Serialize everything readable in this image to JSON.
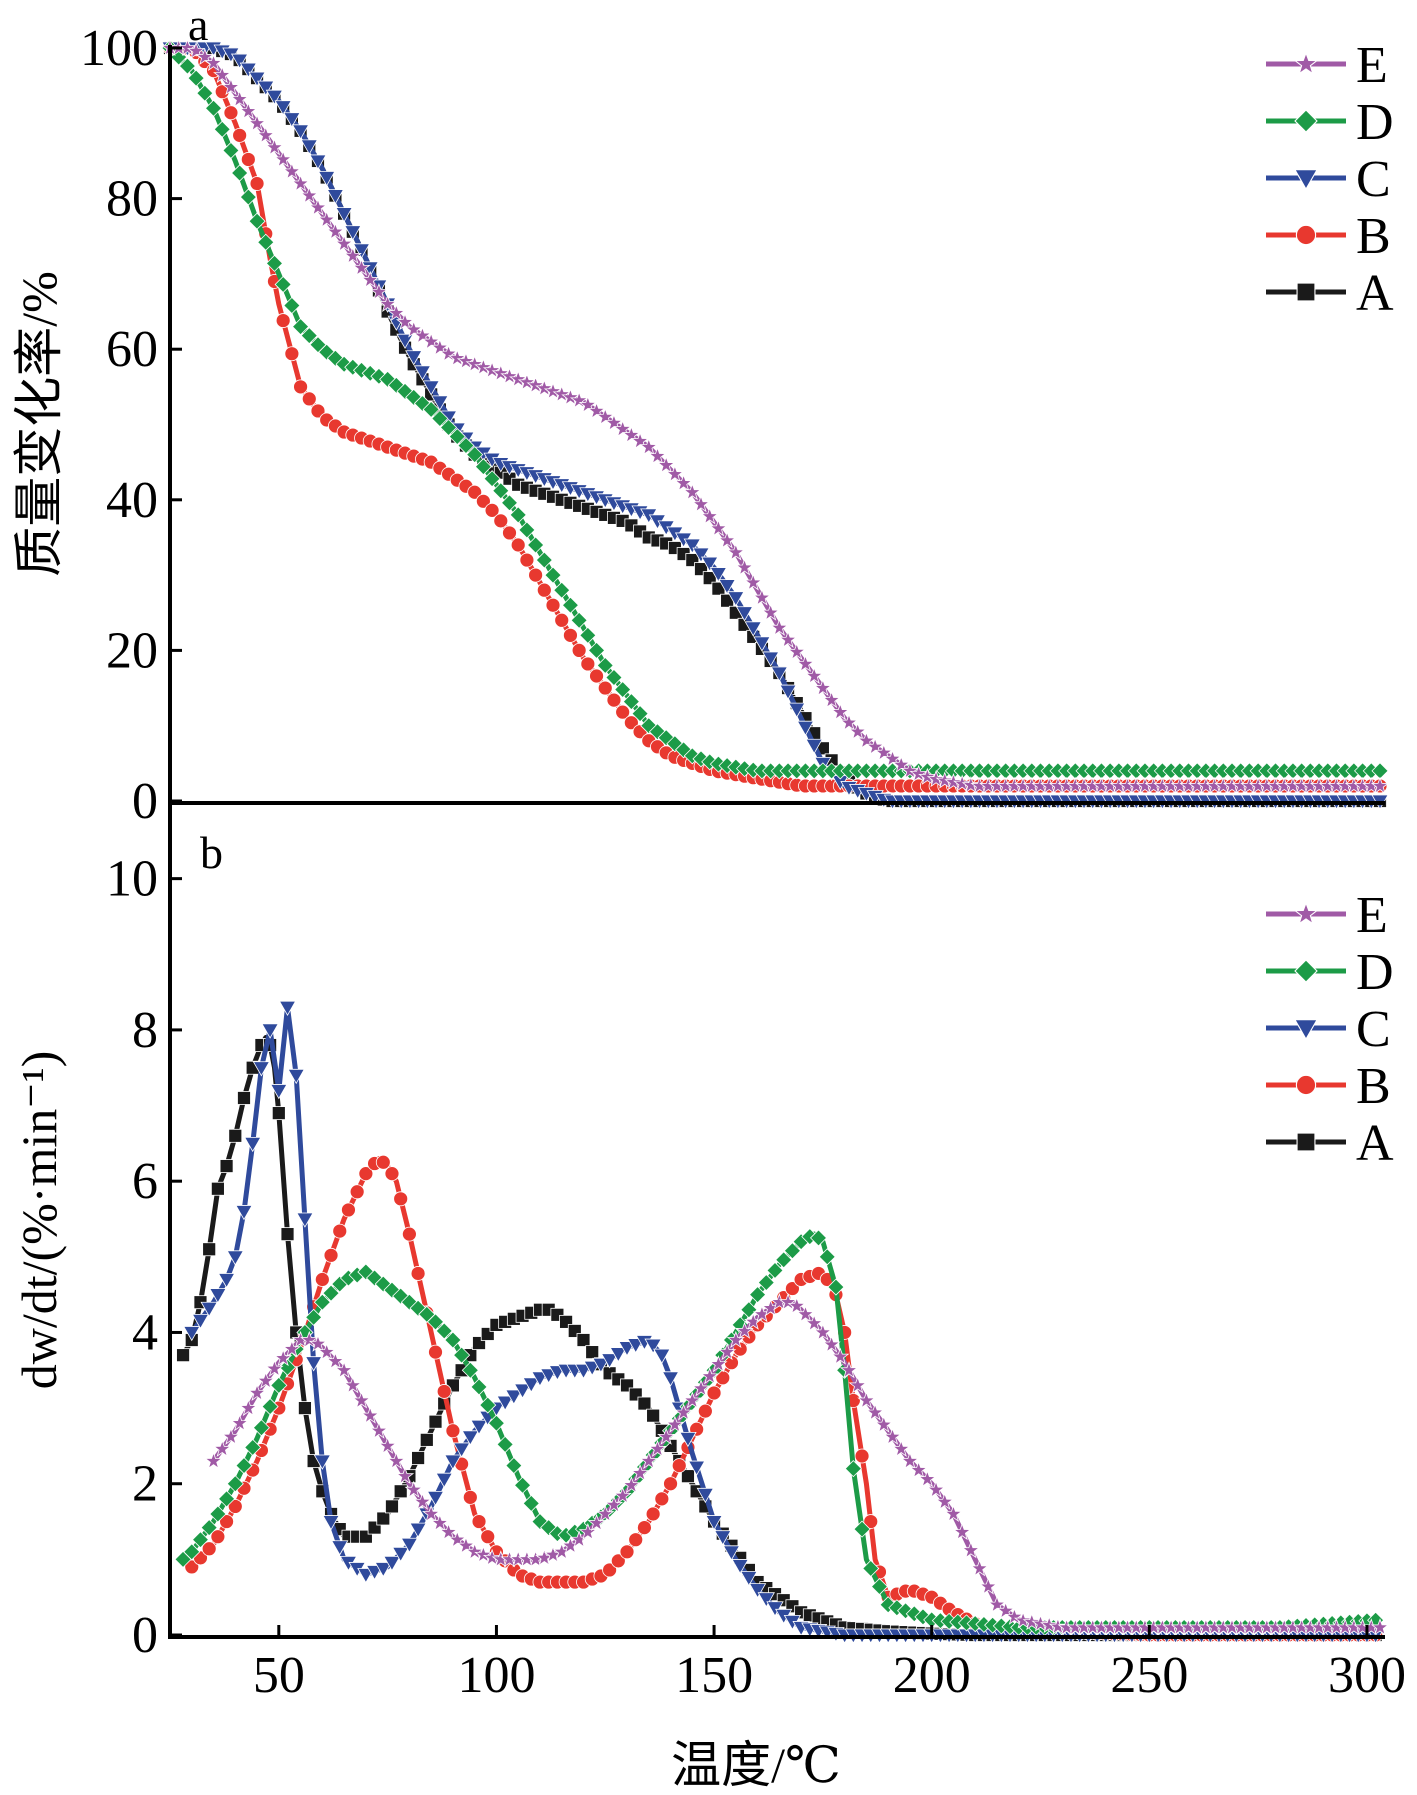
{
  "x_axis": {
    "label": "温度/℃",
    "ticks": [
      "50",
      "100",
      "150",
      "200",
      "250",
      "300"
    ],
    "range": [
      25,
      303
    ]
  },
  "panels": [
    {
      "letter": "a",
      "ylabel": "质量变化率/%",
      "yticks": [
        "100",
        "80",
        "60",
        "40",
        "20",
        "0"
      ]
    },
    {
      "letter": "b",
      "ylabel": "dw/dt/(%·min⁻¹)",
      "yticks": [
        "10",
        "8",
        "6",
        "4",
        "2",
        "0"
      ]
    }
  ],
  "legend": [
    {
      "label": "E",
      "color": "#a05aa6",
      "marker": "star"
    },
    {
      "label": "D",
      "color": "#1c9b47",
      "marker": "diamond"
    },
    {
      "label": "C",
      "color": "#2f4a9c",
      "marker": "triangle-down"
    },
    {
      "label": "B",
      "color": "#e8382f",
      "marker": "circle"
    },
    {
      "label": "A",
      "color": "#1a1a1a",
      "marker": "square"
    }
  ],
  "chart_data": [
    {
      "type": "line",
      "title": "",
      "xlabel": "温度/℃",
      "ylabel": "质量变化率/%",
      "xlim": [
        25,
        303
      ],
      "ylim": [
        0,
        100
      ],
      "grid": false,
      "legend_position": "top-right",
      "series": [
        {
          "name": "A",
          "x": [
            25,
            30,
            35,
            40,
            45,
            50,
            55,
            60,
            65,
            70,
            75,
            80,
            85,
            90,
            95,
            100,
            105,
            110,
            115,
            120,
            125,
            130,
            135,
            140,
            145,
            150,
            155,
            160,
            165,
            170,
            175,
            180,
            185,
            190,
            200,
            220,
            250,
            280,
            303
          ],
          "y": [
            100,
            100,
            100,
            99,
            96,
            93,
            89,
            84,
            78,
            72,
            65,
            59,
            54,
            49,
            46,
            44,
            42,
            41,
            40,
            39,
            38,
            37,
            35,
            34,
            32,
            29,
            25,
            21,
            17,
            12,
            7,
            3,
            1,
            0,
            0,
            0,
            0,
            0,
            0
          ]
        },
        {
          "name": "B",
          "x": [
            25,
            30,
            35,
            40,
            45,
            48,
            50,
            55,
            60,
            65,
            70,
            75,
            80,
            85,
            90,
            95,
            100,
            105,
            110,
            115,
            120,
            125,
            130,
            135,
            140,
            145,
            150,
            160,
            170,
            180,
            200,
            250,
            303
          ],
          "y": [
            100,
            100,
            97,
            90,
            82,
            72,
            66,
            55,
            51,
            49,
            48,
            47,
            46,
            45,
            43,
            41,
            38,
            34,
            29,
            24,
            19,
            15,
            11,
            8,
            6,
            5,
            4,
            3,
            2,
            2,
            2,
            2,
            2
          ]
        },
        {
          "name": "C",
          "x": [
            25,
            30,
            35,
            40,
            45,
            50,
            55,
            60,
            65,
            70,
            75,
            80,
            85,
            90,
            95,
            100,
            105,
            110,
            115,
            120,
            125,
            130,
            135,
            140,
            145,
            150,
            155,
            160,
            165,
            170,
            175,
            180,
            185,
            190,
            200,
            250,
            303
          ],
          "y": [
            100,
            100,
            100,
            99,
            96,
            93,
            89,
            84,
            78,
            72,
            66,
            60,
            55,
            50,
            47,
            45,
            44,
            43,
            42,
            41,
            40,
            39,
            38,
            36,
            34,
            31,
            27,
            22,
            17,
            11,
            5,
            2,
            1,
            0,
            0,
            0,
            0
          ]
        },
        {
          "name": "D",
          "x": [
            25,
            30,
            35,
            40,
            45,
            50,
            55,
            60,
            65,
            70,
            75,
            80,
            85,
            90,
            95,
            100,
            105,
            110,
            115,
            120,
            125,
            130,
            135,
            140,
            145,
            150,
            160,
            170,
            180,
            200,
            250,
            303
          ],
          "y": [
            100,
            97,
            92,
            85,
            77,
            70,
            63,
            60,
            58,
            57,
            56,
            54,
            52,
            49,
            46,
            42,
            38,
            33,
            28,
            23,
            18,
            14,
            10,
            8,
            6,
            5,
            4,
            4,
            4,
            4,
            4,
            4
          ]
        },
        {
          "name": "E",
          "x": [
            25,
            30,
            35,
            40,
            45,
            50,
            55,
            60,
            65,
            70,
            75,
            80,
            85,
            90,
            95,
            100,
            105,
            110,
            115,
            120,
            125,
            130,
            135,
            140,
            145,
            150,
            155,
            160,
            165,
            170,
            175,
            180,
            185,
            190,
            195,
            200,
            210,
            220,
            250,
            303
          ],
          "y": [
            100,
            100,
            98,
            94,
            90,
            86,
            82,
            78,
            74,
            70,
            66,
            63,
            61,
            59,
            58,
            57,
            56,
            55,
            54,
            53,
            51,
            49,
            47,
            44,
            41,
            37,
            33,
            28,
            23,
            19,
            15,
            11,
            8,
            6,
            4,
            3,
            2,
            2,
            2,
            2
          ]
        }
      ]
    },
    {
      "type": "line",
      "title": "",
      "xlabel": "温度/℃",
      "ylabel": "dw/dt/(%·min⁻¹)",
      "xlim": [
        25,
        303
      ],
      "ylim": [
        0,
        11
      ],
      "grid": false,
      "legend_position": "right",
      "series": [
        {
          "name": "A",
          "x": [
            28,
            30,
            32,
            34,
            36,
            38,
            40,
            42,
            44,
            46,
            47,
            48,
            49,
            50,
            52,
            54,
            56,
            58,
            60,
            62,
            65,
            70,
            75,
            80,
            85,
            90,
            95,
            100,
            105,
            110,
            112,
            115,
            120,
            125,
            130,
            135,
            140,
            145,
            150,
            155,
            160,
            165,
            170,
            175,
            180,
            190,
            200,
            210,
            250,
            303
          ],
          "y": [
            3.7,
            3.9,
            4.4,
            5.1,
            5.9,
            6.2,
            6.6,
            7.1,
            7.5,
            7.8,
            7.9,
            7.8,
            7.5,
            6.9,
            5.3,
            4.0,
            3.0,
            2.3,
            1.9,
            1.6,
            1.3,
            1.3,
            1.6,
            2.1,
            2.7,
            3.3,
            3.8,
            4.1,
            4.2,
            4.3,
            4.3,
            4.2,
            3.9,
            3.5,
            3.3,
            3.0,
            2.5,
            2.0,
            1.5,
            1.1,
            0.7,
            0.5,
            0.3,
            0.2,
            0.1,
            0.05,
            0.02,
            0,
            0,
            0
          ]
        },
        {
          "name": "B",
          "x": [
            30,
            35,
            40,
            45,
            50,
            55,
            60,
            65,
            70,
            73,
            75,
            77,
            80,
            85,
            90,
            95,
            100,
            105,
            110,
            115,
            120,
            125,
            130,
            135,
            140,
            145,
            150,
            155,
            160,
            165,
            170,
            175,
            178,
            180,
            182,
            185,
            187,
            190,
            195,
            200,
            205,
            210,
            220,
            250,
            303
          ],
          "y": [
            0.9,
            1.2,
            1.7,
            2.3,
            3.0,
            3.8,
            4.7,
            5.5,
            6.1,
            6.3,
            6.2,
            6.0,
            5.3,
            4.0,
            2.7,
            1.6,
            1.1,
            0.8,
            0.7,
            0.7,
            0.7,
            0.8,
            1.1,
            1.5,
            2.0,
            2.6,
            3.2,
            3.7,
            4.1,
            4.4,
            4.7,
            4.8,
            4.5,
            4.0,
            3.1,
            2.0,
            1.0,
            0.5,
            0.6,
            0.5,
            0.3,
            0.15,
            0.05,
            0,
            0
          ]
        },
        {
          "name": "C",
          "x": [
            30,
            35,
            38,
            40,
            42,
            44,
            46,
            48,
            50,
            52,
            54,
            56,
            58,
            60,
            62,
            65,
            70,
            75,
            80,
            85,
            90,
            95,
            100,
            105,
            110,
            115,
            120,
            125,
            130,
            135,
            138,
            140,
            145,
            150,
            155,
            160,
            165,
            170,
            175,
            180,
            200,
            250,
            303
          ],
          "y": [
            4.0,
            4.4,
            4.7,
            5.0,
            5.6,
            6.5,
            7.5,
            8.0,
            7.2,
            8.3,
            7.4,
            5.5,
            3.6,
            2.3,
            1.5,
            1.0,
            0.8,
            0.9,
            1.2,
            1.7,
            2.3,
            2.7,
            3.0,
            3.2,
            3.4,
            3.5,
            3.5,
            3.6,
            3.8,
            3.9,
            3.7,
            3.4,
            2.4,
            1.5,
            1.0,
            0.6,
            0.3,
            0.1,
            0.05,
            0,
            0,
            0,
            0
          ]
        },
        {
          "name": "D",
          "x": [
            28,
            30,
            35,
            40,
            45,
            50,
            55,
            60,
            65,
            70,
            75,
            80,
            85,
            90,
            95,
            100,
            105,
            110,
            115,
            120,
            125,
            130,
            135,
            140,
            145,
            150,
            155,
            160,
            165,
            170,
            173,
            175,
            178,
            180,
            182,
            185,
            190,
            200,
            220,
            250,
            280,
            303
          ],
          "y": [
            1.0,
            1.1,
            1.5,
            2.0,
            2.6,
            3.3,
            3.9,
            4.4,
            4.7,
            4.8,
            4.6,
            4.4,
            4.2,
            3.9,
            3.4,
            2.8,
            2.1,
            1.5,
            1.3,
            1.4,
            1.6,
            1.9,
            2.3,
            2.7,
            3.1,
            3.5,
            4.0,
            4.5,
            4.9,
            5.2,
            5.3,
            5.2,
            4.6,
            3.5,
            2.2,
            1.0,
            0.4,
            0.2,
            0.1,
            0.1,
            0.1,
            0.2
          ]
        },
        {
          "name": "E",
          "x": [
            35,
            40,
            45,
            50,
            55,
            58,
            60,
            65,
            70,
            75,
            80,
            85,
            90,
            95,
            100,
            105,
            110,
            115,
            120,
            125,
            130,
            135,
            140,
            145,
            150,
            155,
            160,
            165,
            168,
            170,
            175,
            180,
            185,
            190,
            195,
            200,
            205,
            210,
            215,
            220,
            230,
            250,
            303
          ],
          "y": [
            2.3,
            2.7,
            3.2,
            3.6,
            3.9,
            3.9,
            3.8,
            3.5,
            3.0,
            2.5,
            2.0,
            1.6,
            1.3,
            1.1,
            1.0,
            1.0,
            1.0,
            1.1,
            1.3,
            1.6,
            1.9,
            2.3,
            2.7,
            3.1,
            3.5,
            3.9,
            4.2,
            4.4,
            4.4,
            4.3,
            4.0,
            3.6,
            3.1,
            2.7,
            2.3,
            2.0,
            1.6,
            1.0,
            0.4,
            0.2,
            0.1,
            0.1,
            0.1
          ]
        }
      ]
    }
  ]
}
